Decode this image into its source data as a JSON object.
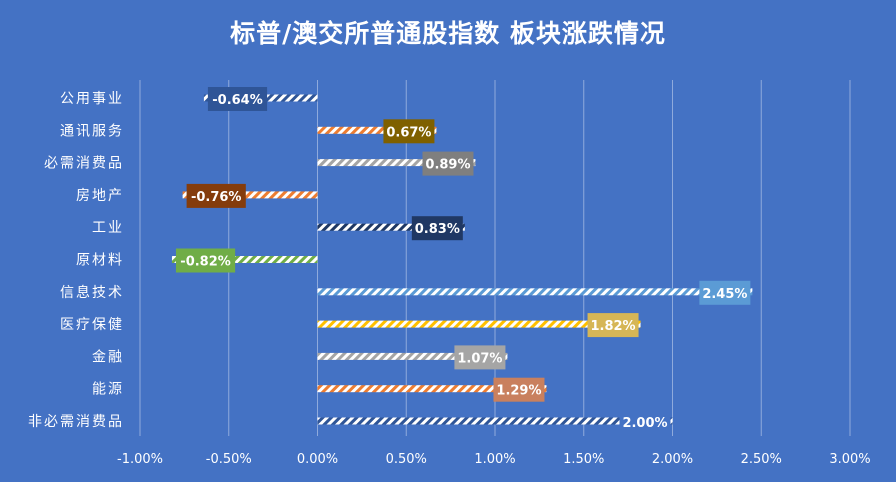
{
  "chart_data": {
    "type": "bar",
    "orientation": "horizontal",
    "title": "标普/澳交所普通股指数 板块涨跌情况",
    "categories": [
      "公用事业",
      "通讯服务",
      "必需消费品",
      "房地产",
      "工业",
      "原材料",
      "信息技术",
      "医疗保健",
      "金融",
      "能源",
      "非必需消费品"
    ],
    "values": [
      -0.64,
      0.67,
      0.89,
      -0.76,
      0.83,
      -0.82,
      2.45,
      1.82,
      1.07,
      1.29,
      2.0
    ],
    "data_labels": [
      "-0.64%",
      "0.67%",
      "0.89%",
      "-0.76%",
      "0.83%",
      "-0.82%",
      "2.45%",
      "1.82%",
      "1.07%",
      "1.29%",
      "2.00%"
    ],
    "label_colors": [
      "#2f5597",
      "#7f6000",
      "#7f7f7f",
      "#843c0c",
      "#203864",
      "#70ad47",
      "#5b9bd5",
      "#d6b656",
      "#a5a5a5",
      "#c9805e",
      "#4472c4"
    ],
    "bar_colors": [
      "#2f5597",
      "#ed7d31",
      "#a5a5a5",
      "#ed7d31",
      "#1f3864",
      "#70ad47",
      "#5b9bd5",
      "#ffc000",
      "#a5a5a5",
      "#ed7d31",
      "#2f5597"
    ],
    "xlim": [
      -1.0,
      3.0
    ],
    "xticks": [
      -1.0,
      -0.5,
      0.0,
      0.5,
      1.0,
      1.5,
      2.0,
      2.5,
      3.0
    ],
    "xtick_labels": [
      "-1.00%",
      "-0.50%",
      "0.00%",
      "0.50%",
      "1.00%",
      "1.50%",
      "2.00%",
      "2.50%",
      "3.00%"
    ],
    "xlabel": "",
    "ylabel": "",
    "grid": "vertical",
    "legend": "none",
    "background_color": "#4472c4",
    "gridline_color": "#8faadc"
  }
}
